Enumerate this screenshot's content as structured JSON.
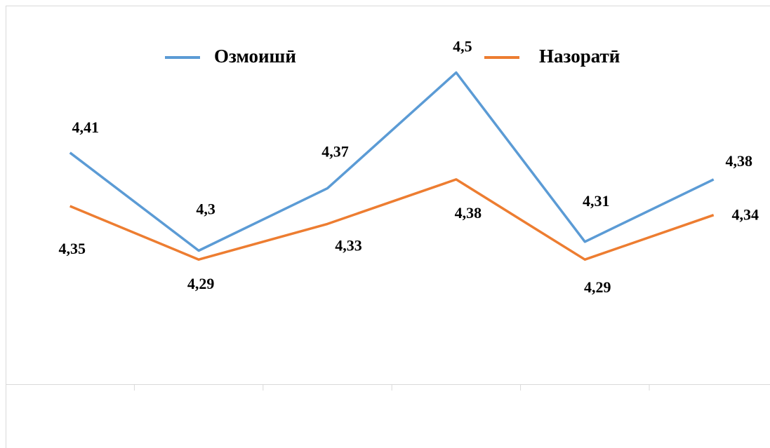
{
  "chart_data": {
    "type": "line",
    "categories": [
      null,
      null,
      null,
      null,
      null,
      null
    ],
    "series": [
      {
        "name": "Озмоишӣ",
        "color": "#5b9bd5",
        "values": [
          4.41,
          4.3,
          4.37,
          4.5,
          4.31,
          4.38
        ],
        "value_labels": [
          "4,41",
          "4,3",
          "4,37",
          "4,5",
          "4,31",
          "4,38"
        ]
      },
      {
        "name": "Назоратӣ",
        "color": "#ed7d31",
        "values": [
          4.35,
          4.29,
          4.33,
          4.38,
          4.29,
          4.34
        ],
        "value_labels": [
          "4,35",
          "4,29",
          "4,33",
          "4,38",
          "4,29",
          "4,34"
        ]
      }
    ],
    "ylim": [
      4.15,
      4.55
    ],
    "legend": "top"
  }
}
